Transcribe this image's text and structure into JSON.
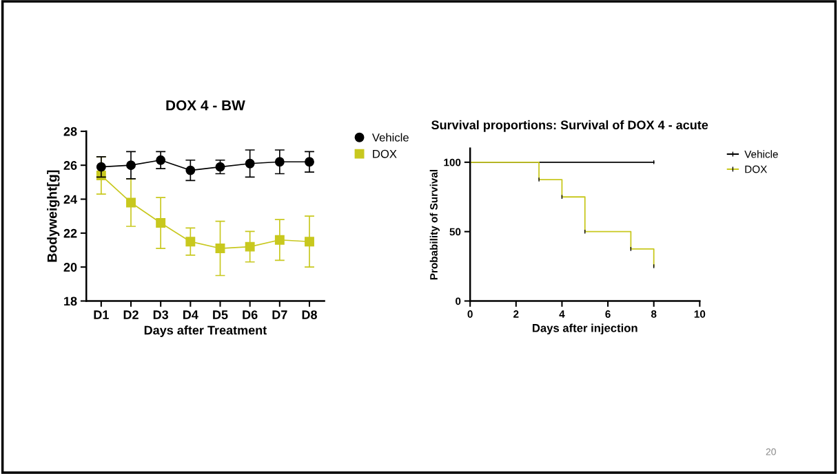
{
  "chart_data": [
    {
      "type": "line",
      "title": "DOX 4 - BW",
      "xlabel": "Days after Treatment",
      "ylabel": "Bodyweight[g]",
      "categories": [
        "D1",
        "D2",
        "D3",
        "D4",
        "D5",
        "D6",
        "D7",
        "D8"
      ],
      "series": [
        {
          "name": "Vehicle",
          "color": "#000000",
          "marker": "circle",
          "values": [
            25.9,
            26.0,
            26.3,
            25.7,
            25.9,
            26.1,
            26.2,
            26.2
          ],
          "errors": [
            0.6,
            0.8,
            0.5,
            0.6,
            0.4,
            0.8,
            0.7,
            0.6
          ]
        },
        {
          "name": "DOX",
          "color": "#c8c81e",
          "marker": "square",
          "values": [
            25.4,
            23.8,
            22.6,
            21.5,
            21.1,
            21.2,
            21.6,
            21.5
          ],
          "errors": [
            1.1,
            1.4,
            1.5,
            0.8,
            1.6,
            0.9,
            1.2,
            1.5
          ]
        }
      ],
      "ylim": [
        18,
        28
      ],
      "yticks": [
        18,
        20,
        22,
        24,
        26,
        28
      ],
      "grid": false,
      "legend": "top right"
    },
    {
      "type": "step",
      "title": "Survival proportions: Survival of DOX 4 - acute",
      "xlabel": "Days after injection",
      "ylabel": "Probability of Survival",
      "series": [
        {
          "name": "Vehicle",
          "color": "#000000",
          "x": [
            0,
            8
          ],
          "values": [
            100,
            100
          ]
        },
        {
          "name": "DOX",
          "color": "#c8c81e",
          "x": [
            0,
            3,
            4,
            5,
            7,
            8
          ],
          "values": [
            100,
            87.5,
            75,
            50,
            37.5,
            25
          ]
        }
      ],
      "xlim": [
        0,
        10
      ],
      "xticks": [
        0,
        2,
        4,
        6,
        8,
        10
      ],
      "ylim": [
        0,
        110
      ],
      "yticks": [
        0,
        50,
        100
      ],
      "grid": false,
      "legend": "top right",
      "annotations": [
        "20"
      ]
    }
  ]
}
